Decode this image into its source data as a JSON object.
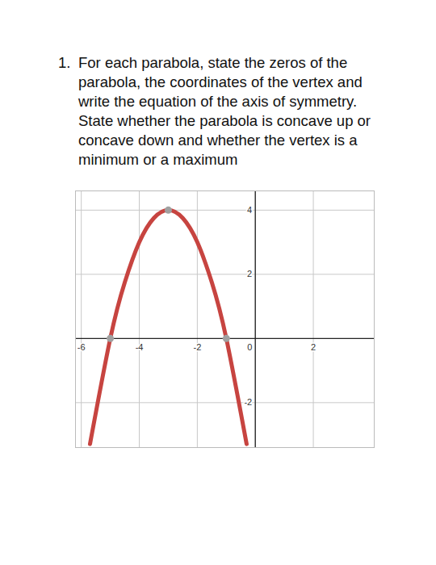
{
  "question": {
    "number": "1.",
    "lines": [
      "For each parabola, state the zeros of the",
      "parabola, the coordinates of the vertex and",
      "write the equation of the axis of symmetry.",
      "State whether the parabola is concave up or",
      "concave down and whether the vertex is a",
      "minimum or a maximum"
    ]
  },
  "chart_data": {
    "type": "line",
    "x": [
      -5.7,
      -5,
      -4.5,
      -4,
      -3.5,
      -3,
      -2.5,
      -2,
      -1.5,
      -1,
      -0.3
    ],
    "values": [
      -3.29,
      0,
      1.75,
      3,
      3.75,
      4,
      3.75,
      3,
      1.75,
      0,
      -3.29
    ],
    "color": "#c74440",
    "highlighted_points": {
      "x": [
        -5,
        -3,
        -1
      ],
      "y": [
        0,
        4,
        0
      ],
      "color": "#a0a0a0",
      "marker": "circle"
    },
    "origin": [
      0,
      0
    ],
    "xlim": [
      -6.2,
      4.1
    ],
    "ylim": [
      -3.4,
      4.6
    ],
    "xticks": [
      -6,
      -4,
      -2,
      0,
      2
    ],
    "yticks": [
      -2,
      2,
      4
    ],
    "grid": true
  }
}
